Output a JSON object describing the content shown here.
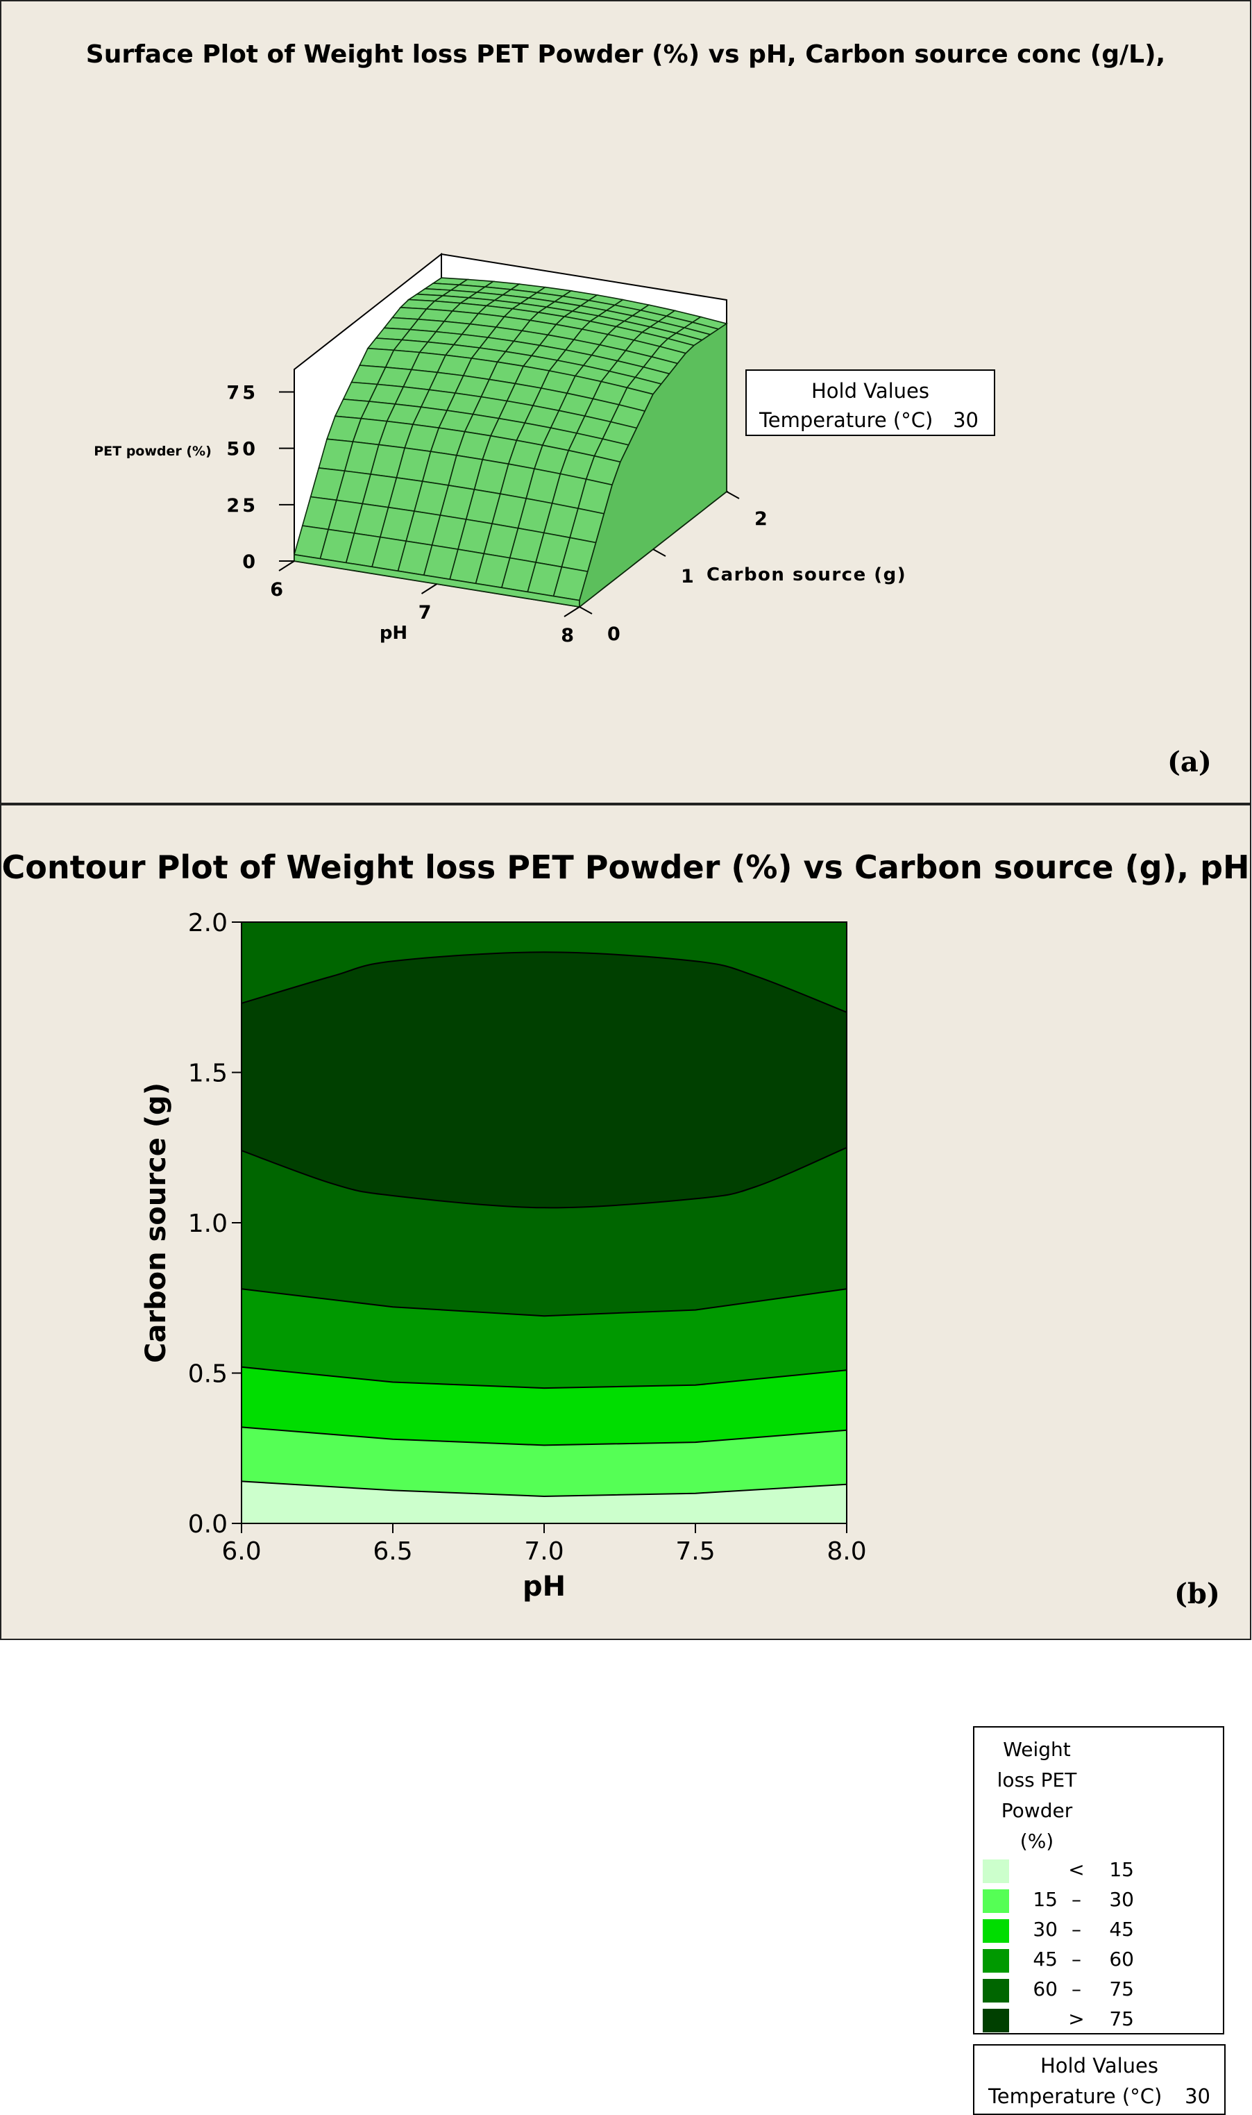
{
  "panel_a": {
    "title": "Surface Plot of Weight loss PET Powder (%) vs pH, Carbon source conc (g/L),",
    "label": "(a)",
    "hold": {
      "title": "Hold Values",
      "variable": "Temperature (°C)",
      "value": "30"
    },
    "colors": {
      "surface": "#6fd46f",
      "mesh": "#0a2a0a"
    }
  },
  "panel_b": {
    "title": "Contour Plot of Weight loss PET Powder (%) vs Carbon source (g), pH",
    "label": "(b)",
    "legend": {
      "title_lines": [
        "Weight",
        "loss PET",
        "Powder",
        "(%)"
      ],
      "items": [
        {
          "lo": "",
          "sep": "<",
          "hi": "15",
          "color": "#ccffcc"
        },
        {
          "lo": "15",
          "sep": "–",
          "hi": "30",
          "color": "#55ff55"
        },
        {
          "lo": "30",
          "sep": "–",
          "hi": "45",
          "color": "#00dd00"
        },
        {
          "lo": "45",
          "sep": "–",
          "hi": "60",
          "color": "#009900"
        },
        {
          "lo": "60",
          "sep": "–",
          "hi": "75",
          "color": "#006600"
        },
        {
          "lo": "",
          "sep": ">",
          "hi": "75",
          "color": "#004000"
        }
      ]
    },
    "hold": {
      "title": "Hold Values",
      "variable": "Temperature (°C)",
      "value": "30"
    }
  },
  "chart_data": [
    {
      "type": "surface",
      "zlabel": "PET powder (%)",
      "xlabel": "pH",
      "ylabel": "Carbon source (g)",
      "x_ticks": [
        "6",
        "7",
        "8"
      ],
      "y_ticks": [
        "0",
        "1",
        "2"
      ],
      "z_ticks": [
        "0",
        "25",
        "50",
        "75"
      ],
      "xlim": [
        6,
        8
      ],
      "ylim": [
        0,
        2
      ],
      "zlim": [
        0,
        85
      ],
      "z_at_carbon": {
        "carbon": [
          0,
          0.5,
          1.0,
          1.5,
          2.0
        ],
        "z": [
          3,
          50,
          72,
          80,
          78
        ]
      }
    },
    {
      "type": "contour",
      "xlabel": "pH",
      "ylabel": "Carbon source (g)",
      "x_ticks": [
        "6.0",
        "6.5",
        "7.0",
        "7.5",
        "8.0"
      ],
      "y_ticks": [
        "0.0",
        "0.5",
        "1.0",
        "1.5",
        "2.0"
      ],
      "xlim": [
        6,
        8
      ],
      "ylim": [
        0,
        2
      ],
      "levels": [
        15,
        30,
        45,
        60,
        75
      ],
      "contours": [
        {
          "level": 15,
          "x": [
            6.0,
            6.5,
            7.0,
            7.5,
            8.0
          ],
          "y": [
            0.14,
            0.11,
            0.09,
            0.1,
            0.13
          ]
        },
        {
          "level": 30,
          "x": [
            6.0,
            6.5,
            7.0,
            7.5,
            8.0
          ],
          "y": [
            0.32,
            0.28,
            0.26,
            0.27,
            0.31
          ]
        },
        {
          "level": 45,
          "x": [
            6.0,
            6.5,
            7.0,
            7.5,
            8.0
          ],
          "y": [
            0.52,
            0.47,
            0.45,
            0.46,
            0.51
          ]
        },
        {
          "level": 60,
          "x": [
            6.0,
            6.5,
            7.0,
            7.5,
            8.0
          ],
          "y": [
            0.78,
            0.72,
            0.69,
            0.71,
            0.78
          ]
        },
        {
          "level": 75,
          "x": [
            6.0,
            6.3,
            6.5,
            7.0,
            7.5,
            7.7,
            8.0,
            8.0,
            7.7,
            7.5,
            7.0,
            6.5,
            6.3,
            6.0
          ],
          "y": [
            1.24,
            1.13,
            1.09,
            1.05,
            1.08,
            1.12,
            1.25,
            1.7,
            1.82,
            1.87,
            1.9,
            1.87,
            1.82,
            1.73
          ]
        }
      ]
    }
  ]
}
